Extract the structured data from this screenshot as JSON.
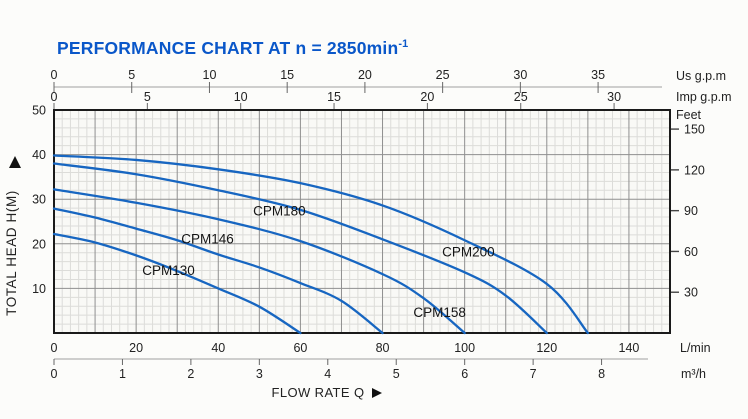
{
  "title": {
    "text": "PERFORMANCE CHART AT n = 2850min",
    "exponent": "-1"
  },
  "colors": {
    "title_blue": "#0a57c9",
    "curve_blue": "#1766c1",
    "grid_minor": "#dcdcd9",
    "grid_major": "#8f8f8f",
    "plot_border": "#1a1a1a",
    "ruler_line": "#a0a0a0",
    "tick": "#666666",
    "text": "#222222",
    "plot_bg": "#f9f9f6",
    "page_bg": "#fcfcfa"
  },
  "chart_data": {
    "type": "line",
    "title": "PERFORMANCE CHART AT n = 2850min⁻¹",
    "xlabel": "FLOW RATE Q",
    "ylabel": "TOTAL HEAD H(M)",
    "x_range_lmin": [
      0,
      150
    ],
    "y_range_m": [
      0,
      50
    ],
    "grid": {
      "grid_on": true,
      "minor_step": 2,
      "major_step": 10
    },
    "legend_position": "labels-on-curves",
    "axes": {
      "us_gpm": {
        "label": "Us g.p.m",
        "lmin_per_unit": 3.7854,
        "ticks": [
          0,
          5,
          10,
          15,
          20,
          25,
          30,
          35
        ]
      },
      "imp_gpm": {
        "label": "Imp g.p.m",
        "lmin_per_unit": 4.5461,
        "ticks": [
          0,
          5,
          10,
          15,
          20,
          25,
          30
        ]
      },
      "lmin": {
        "label": "L/min",
        "lmin_per_unit": 1,
        "ticks": [
          0,
          20,
          40,
          60,
          80,
          100,
          120,
          140
        ]
      },
      "m3h": {
        "label": "m³/h",
        "lmin_per_unit": 16.667,
        "ticks": [
          0,
          1,
          2,
          3,
          4,
          5,
          6,
          7,
          8
        ]
      },
      "head_m": {
        "label": "TOTAL HEAD H(M)",
        "ticks": [
          10,
          20,
          30,
          40,
          50
        ]
      },
      "feet": {
        "label": "Feet",
        "m_per_unit": 0.3048,
        "ticks": [
          30,
          60,
          90,
          120,
          150
        ]
      }
    },
    "series": [
      {
        "name": "CPM130",
        "points": [
          [
            0,
            22.2
          ],
          [
            10,
            20.3
          ],
          [
            20,
            17.4
          ],
          [
            30,
            13.9
          ],
          [
            40,
            10
          ],
          [
            50,
            5.9
          ],
          [
            60,
            0
          ]
        ],
        "label_at": [
          21.5,
          13.0
        ]
      },
      {
        "name": "CPM146",
        "points": [
          [
            0,
            27.9
          ],
          [
            10,
            25.9
          ],
          [
            20,
            23.4
          ],
          [
            30,
            20.8
          ],
          [
            40,
            17.6
          ],
          [
            50,
            14.7
          ],
          [
            60,
            11.2
          ],
          [
            70,
            7.2
          ],
          [
            80,
            0
          ]
        ],
        "label_at": [
          31,
          20.1
        ]
      },
      {
        "name": "CPM158",
        "points": [
          [
            0,
            32.2
          ],
          [
            20,
            29.2
          ],
          [
            40,
            25.5
          ],
          [
            60,
            20.6
          ],
          [
            80,
            13.2
          ],
          [
            90,
            7.8
          ],
          [
            100,
            0
          ]
        ],
        "label_at": [
          87.5,
          3.6
        ]
      },
      {
        "name": "CPM180",
        "points": [
          [
            0,
            38
          ],
          [
            20,
            35.6
          ],
          [
            40,
            32
          ],
          [
            60,
            27.6
          ],
          [
            80,
            21
          ],
          [
            100,
            13.6
          ],
          [
            110,
            8.4
          ],
          [
            120,
            0
          ]
        ],
        "label_at": [
          48.5,
          26.4
        ]
      },
      {
        "name": "CPM200",
        "points": [
          [
            0,
            39.8
          ],
          [
            20,
            38.8
          ],
          [
            40,
            36.7
          ],
          [
            60,
            33.6
          ],
          [
            80,
            28.6
          ],
          [
            100,
            20.8
          ],
          [
            120,
            11
          ],
          [
            130,
            0
          ]
        ],
        "label_at": [
          94.5,
          17.2
        ]
      }
    ]
  }
}
